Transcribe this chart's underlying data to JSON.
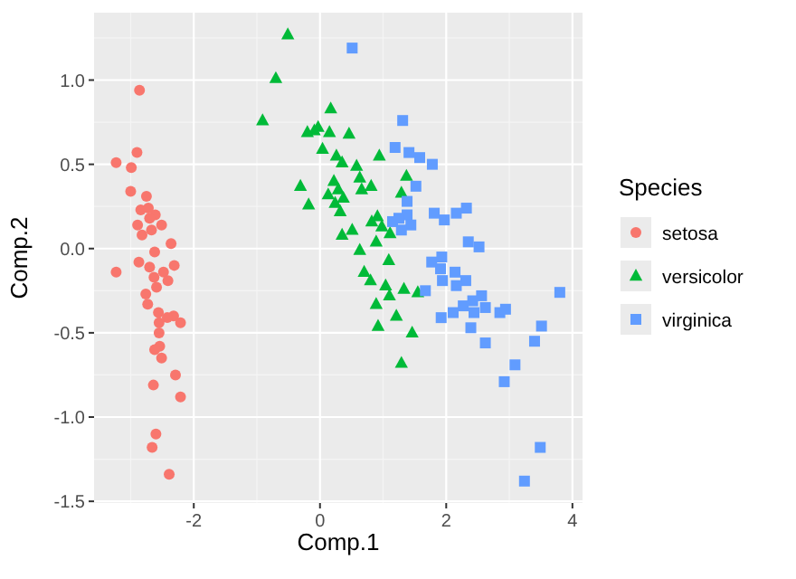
{
  "chart_data": {
    "type": "scatter",
    "xlabel": "Comp.1",
    "ylabel": "Comp.2",
    "legend_title": "Species",
    "legend": "right",
    "grid": true,
    "xlim": [
      -3.58,
      4.16
    ],
    "ylim": [
      -1.51,
      1.4
    ],
    "xticks": [
      -2,
      0,
      2,
      4
    ],
    "yticks": [
      {
        "value": -1.5,
        "label": "-1.5"
      },
      {
        "value": -1,
        "label": "-1.0"
      },
      {
        "value": -0.5,
        "label": "-0.5"
      },
      {
        "value": 0,
        "label": "0.0"
      },
      {
        "value": 0.5,
        "label": "0.5"
      },
      {
        "value": 1,
        "label": "1.0"
      }
    ],
    "series": [
      {
        "name": "setosa",
        "color": "#f8766d",
        "marker": "circle",
        "x": [
          -2.86,
          -2.9,
          -3.23,
          -2.99,
          -3.0,
          -2.75,
          -2.84,
          -2.72,
          -2.61,
          -2.7,
          -2.89,
          -2.51,
          -2.67,
          -2.82,
          -2.36,
          -2.62,
          -2.87,
          -2.7,
          -2.31,
          -3.23,
          -2.48,
          -2.63,
          -2.41,
          -2.59,
          -2.76,
          -2.73,
          -2.56,
          -2.32,
          -2.42,
          -2.55,
          -2.21,
          -2.55,
          -2.54,
          -2.62,
          -2.51,
          -2.29,
          -2.21,
          -2.64,
          -2.6,
          -2.66,
          -2.39
        ],
        "values": [
          0.94,
          0.57,
          0.51,
          0.48,
          0.34,
          0.31,
          0.23,
          0.24,
          0.2,
          0.18,
          0.14,
          0.14,
          0.11,
          0.08,
          0.03,
          -0.02,
          -0.08,
          -0.11,
          -0.1,
          -0.14,
          -0.14,
          -0.17,
          -0.19,
          -0.23,
          -0.27,
          -0.33,
          -0.38,
          -0.4,
          -0.41,
          -0.44,
          -0.44,
          -0.5,
          -0.58,
          -0.6,
          -0.65,
          -0.75,
          -0.88,
          -0.81,
          -1.1,
          -1.18,
          -1.34
        ]
      },
      {
        "name": "versicolor",
        "color": "#00ba38",
        "marker": "triangle",
        "x": [
          -0.51,
          -0.7,
          -0.91,
          0.17,
          -0.03,
          -0.09,
          -0.2,
          0.15,
          0.46,
          0.04,
          0.26,
          0.35,
          0.94,
          0.58,
          1.37,
          0.63,
          0.22,
          -0.31,
          0.81,
          0.66,
          0.29,
          1.29,
          0.13,
          0.37,
          0.24,
          -0.18,
          0.32,
          0.91,
          0.82,
          0.98,
          0.51,
          1.11,
          0.35,
          0.89,
          0.63,
          1.09,
          0.7,
          0.8,
          1.04,
          1.33,
          1.55,
          1.1,
          0.89,
          1.21,
          0.92,
          1.46,
          1.29
        ],
        "values": [
          1.27,
          1.01,
          0.76,
          0.83,
          0.72,
          0.7,
          0.69,
          0.69,
          0.68,
          0.59,
          0.55,
          0.51,
          0.55,
          0.49,
          0.43,
          0.42,
          0.4,
          0.37,
          0.37,
          0.35,
          0.35,
          0.33,
          0.32,
          0.3,
          0.27,
          0.26,
          0.22,
          0.19,
          0.16,
          0.13,
          0.11,
          0.09,
          0.08,
          0.04,
          -0.01,
          -0.07,
          -0.14,
          -0.19,
          -0.22,
          -0.24,
          -0.26,
          -0.28,
          -0.33,
          -0.4,
          -0.46,
          -0.5,
          -0.68
        ]
      },
      {
        "name": "virginica",
        "color": "#619cff",
        "marker": "square",
        "x": [
          0.51,
          1.31,
          1.19,
          1.41,
          1.58,
          1.52,
          1.38,
          1.38,
          1.25,
          1.15,
          1.44,
          1.29,
          1.67,
          1.78,
          1.81,
          1.97,
          2.16,
          2.32,
          2.35,
          2.52,
          1.77,
          1.93,
          1.91,
          2.14,
          2.31,
          1.94,
          2.16,
          2.56,
          2.42,
          2.27,
          2.62,
          2.44,
          2.85,
          2.94,
          2.11,
          1.92,
          3.8,
          2.39,
          3.51,
          2.62,
          3.4,
          3.09,
          2.92,
          3.49,
          3.24
        ],
        "values": [
          1.19,
          0.76,
          0.6,
          0.57,
          0.54,
          0.37,
          0.28,
          0.2,
          0.18,
          0.16,
          0.14,
          0.11,
          -0.25,
          0.5,
          0.21,
          0.17,
          0.21,
          0.24,
          0.04,
          0.01,
          -0.08,
          -0.05,
          -0.12,
          -0.14,
          -0.19,
          -0.19,
          -0.22,
          -0.28,
          -0.31,
          -0.34,
          -0.35,
          -0.38,
          -0.38,
          -0.36,
          -0.38,
          -0.41,
          -0.26,
          -0.47,
          -0.46,
          -0.56,
          -0.55,
          -0.69,
          -0.79,
          -1.18,
          -1.38
        ]
      }
    ]
  }
}
